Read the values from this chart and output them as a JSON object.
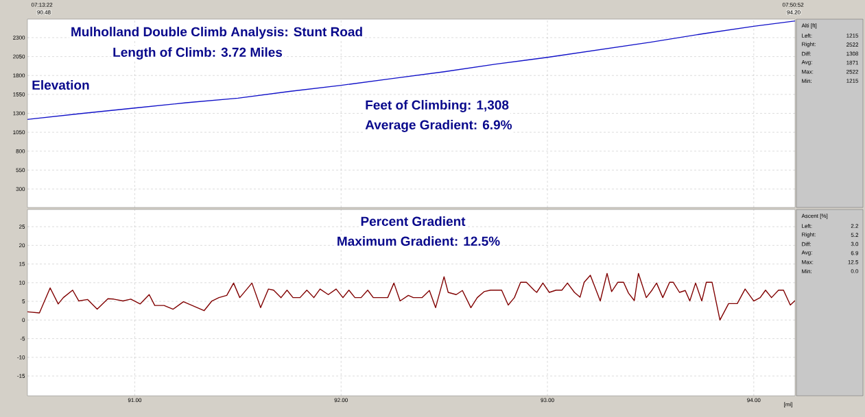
{
  "chart_data": [
    {
      "type": "line",
      "title": "Mulholland Double Climb Analysis: Stunt Road",
      "subtitle": "Length of Climb: 3.72 Miles",
      "color": "#1010c8",
      "x": [
        90.48,
        90.75,
        91.0,
        91.25,
        91.5,
        91.75,
        92.0,
        92.25,
        92.5,
        92.75,
        93.0,
        93.25,
        93.5,
        93.75,
        94.0,
        94.2
      ],
      "values": [
        1220,
        1300,
        1370,
        1440,
        1500,
        1590,
        1670,
        1760,
        1850,
        1950,
        2040,
        2140,
        2240,
        2350,
        2450,
        2520
      ],
      "xlim": [
        90.48,
        94.2
      ],
      "ylim": [
        56,
        2544
      ],
      "xticks": [
        91,
        92,
        93,
        94
      ],
      "yticks": [
        300,
        550,
        800,
        1050,
        1300,
        1550,
        1800,
        2050,
        2300
      ],
      "tick_labels": "y",
      "grid": true,
      "annotations": [
        "07:13:22",
        "90.48",
        "07:50:52",
        "94.20",
        "Elevation",
        "Feet of Climbing: 1,308",
        "Average Gradient: 6.9%",
        "Alti [ft]",
        "Left:",
        "1215",
        "Right:",
        "2522",
        "Diff:",
        "1308",
        "Avg:",
        "1871",
        "Max:",
        "2522",
        "Min:",
        "1215"
      ]
    },
    {
      "type": "line",
      "title": "Percent Gradient",
      "subtitle": "Maximum Gradient: 12.5%",
      "xlabel": "[mi]",
      "color": "#800000",
      "x": [
        90.48,
        90.538,
        90.59,
        90.629,
        90.654,
        90.699,
        90.729,
        90.771,
        90.818,
        90.87,
        90.898,
        90.943,
        90.981,
        91.026,
        91.07,
        91.097,
        91.142,
        91.186,
        91.236,
        91.336,
        91.374,
        91.408,
        91.446,
        91.479,
        91.509,
        91.568,
        91.61,
        91.648,
        91.673,
        91.709,
        91.738,
        91.767,
        91.801,
        91.834,
        91.868,
        91.898,
        91.938,
        91.976,
        92.009,
        92.038,
        92.067,
        92.097,
        92.129,
        92.156,
        92.226,
        92.256,
        92.286,
        92.326,
        92.35,
        92.392,
        92.428,
        92.458,
        92.499,
        92.519,
        92.558,
        92.588,
        92.629,
        92.66,
        92.693,
        92.724,
        92.778,
        92.81,
        92.84,
        92.87,
        92.898,
        92.937,
        92.948,
        92.978,
        93.009,
        93.042,
        93.07,
        93.097,
        93.131,
        93.158,
        93.178,
        93.208,
        93.256,
        93.289,
        93.311,
        93.341,
        93.369,
        93.393,
        93.421,
        93.441,
        93.479,
        93.507,
        93.529,
        93.559,
        93.592,
        93.61,
        93.64,
        93.668,
        93.69,
        93.718,
        93.748,
        93.77,
        93.798,
        93.836,
        93.878,
        93.92,
        93.958,
        94.0,
        94.031,
        94.057,
        94.086,
        94.12,
        94.144,
        94.177,
        94.2
      ],
      "values": [
        2.2,
        1.9,
        8.6,
        4.3,
        6.0,
        8.0,
        5.1,
        5.5,
        2.9,
        5.7,
        5.6,
        5.1,
        5.6,
        4.3,
        6.8,
        3.9,
        3.9,
        2.9,
        4.9,
        2.5,
        5.1,
        6.0,
        6.6,
        9.9,
        6.0,
        9.9,
        3.3,
        8.3,
        8.0,
        6.0,
        8.0,
        6.0,
        6.0,
        8.0,
        6.0,
        8.3,
        6.8,
        8.3,
        6.0,
        8.0,
        6.0,
        6.0,
        8.0,
        6.0,
        6.0,
        9.9,
        5.1,
        6.6,
        6.0,
        6.0,
        7.9,
        3.3,
        11.6,
        7.4,
        6.8,
        7.9,
        3.3,
        6.0,
        7.6,
        8.0,
        8.0,
        4.0,
        6.0,
        10.1,
        10.1,
        7.9,
        7.4,
        9.9,
        7.4,
        8.0,
        8.0,
        9.9,
        7.4,
        6.1,
        10.1,
        12.0,
        5.1,
        12.5,
        7.6,
        10.1,
        10.1,
        7.2,
        5.2,
        12.5,
        6.0,
        8.0,
        9.9,
        6.0,
        10.1,
        10.1,
        7.4,
        7.9,
        5.1,
        9.9,
        5.1,
        10.1,
        10.1,
        0.0,
        4.4,
        4.4,
        8.3,
        5.1,
        6.0,
        8.0,
        6.0,
        8.0,
        8.0,
        4.0,
        5.2
      ],
      "xlim": [
        90.48,
        94.2
      ],
      "ylim": [
        -20.3,
        29.6
      ],
      "xticks": [
        {
          "value": 91,
          "label": "91.00"
        },
        {
          "value": 92,
          "label": "92.00"
        },
        {
          "value": 93,
          "label": "93.00"
        },
        {
          "value": 94,
          "label": "94.00"
        }
      ],
      "yticks": [
        -15,
        -10,
        -5,
        0,
        5,
        10,
        15,
        20,
        25
      ],
      "grid": true,
      "annotations": [
        "Ascent [%]",
        "Left:",
        "2.2",
        "Right:",
        "5.2",
        "Diff:",
        "3.0",
        "Avg:",
        "6.9",
        "Max:",
        "12.5",
        "Min:",
        "0.0"
      ]
    }
  ]
}
